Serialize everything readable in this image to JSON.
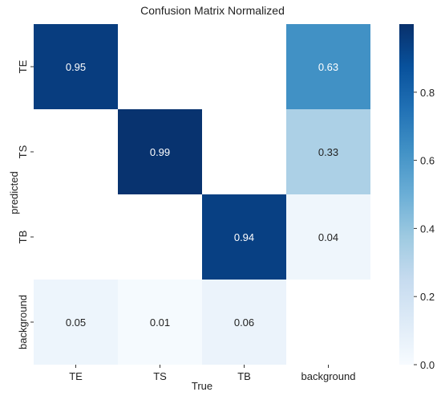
{
  "chart_data": {
    "type": "heatmap",
    "title": "Confusion Matrix Normalized",
    "xlabel": "True",
    "ylabel": "predicted",
    "x_categories": [
      "TE",
      "TS",
      "TB",
      "background"
    ],
    "y_categories": [
      "TE",
      "TS",
      "TB",
      "background"
    ],
    "values": [
      [
        0.95,
        null,
        null,
        0.63
      ],
      [
        null,
        0.99,
        null,
        0.33
      ],
      [
        null,
        null,
        0.94,
        0.04
      ],
      [
        0.05,
        0.01,
        0.06,
        null
      ]
    ],
    "value_labels": [
      [
        "0.95",
        "",
        "",
        "0.63"
      ],
      [
        "",
        "0.99",
        "",
        "0.33"
      ],
      [
        "",
        "",
        "0.94",
        "0.04"
      ],
      [
        "0.05",
        "0.01",
        "0.06",
        ""
      ]
    ],
    "colormap": "Blues",
    "colorbar": {
      "range": [
        0,
        1.0
      ],
      "ticks": [
        0.0,
        0.2,
        0.4,
        0.6,
        0.8
      ],
      "tick_labels": [
        "0.0",
        "0.2",
        "0.4",
        "0.6",
        "0.8"
      ]
    },
    "grid": false,
    "legend": "colorbar-right"
  }
}
